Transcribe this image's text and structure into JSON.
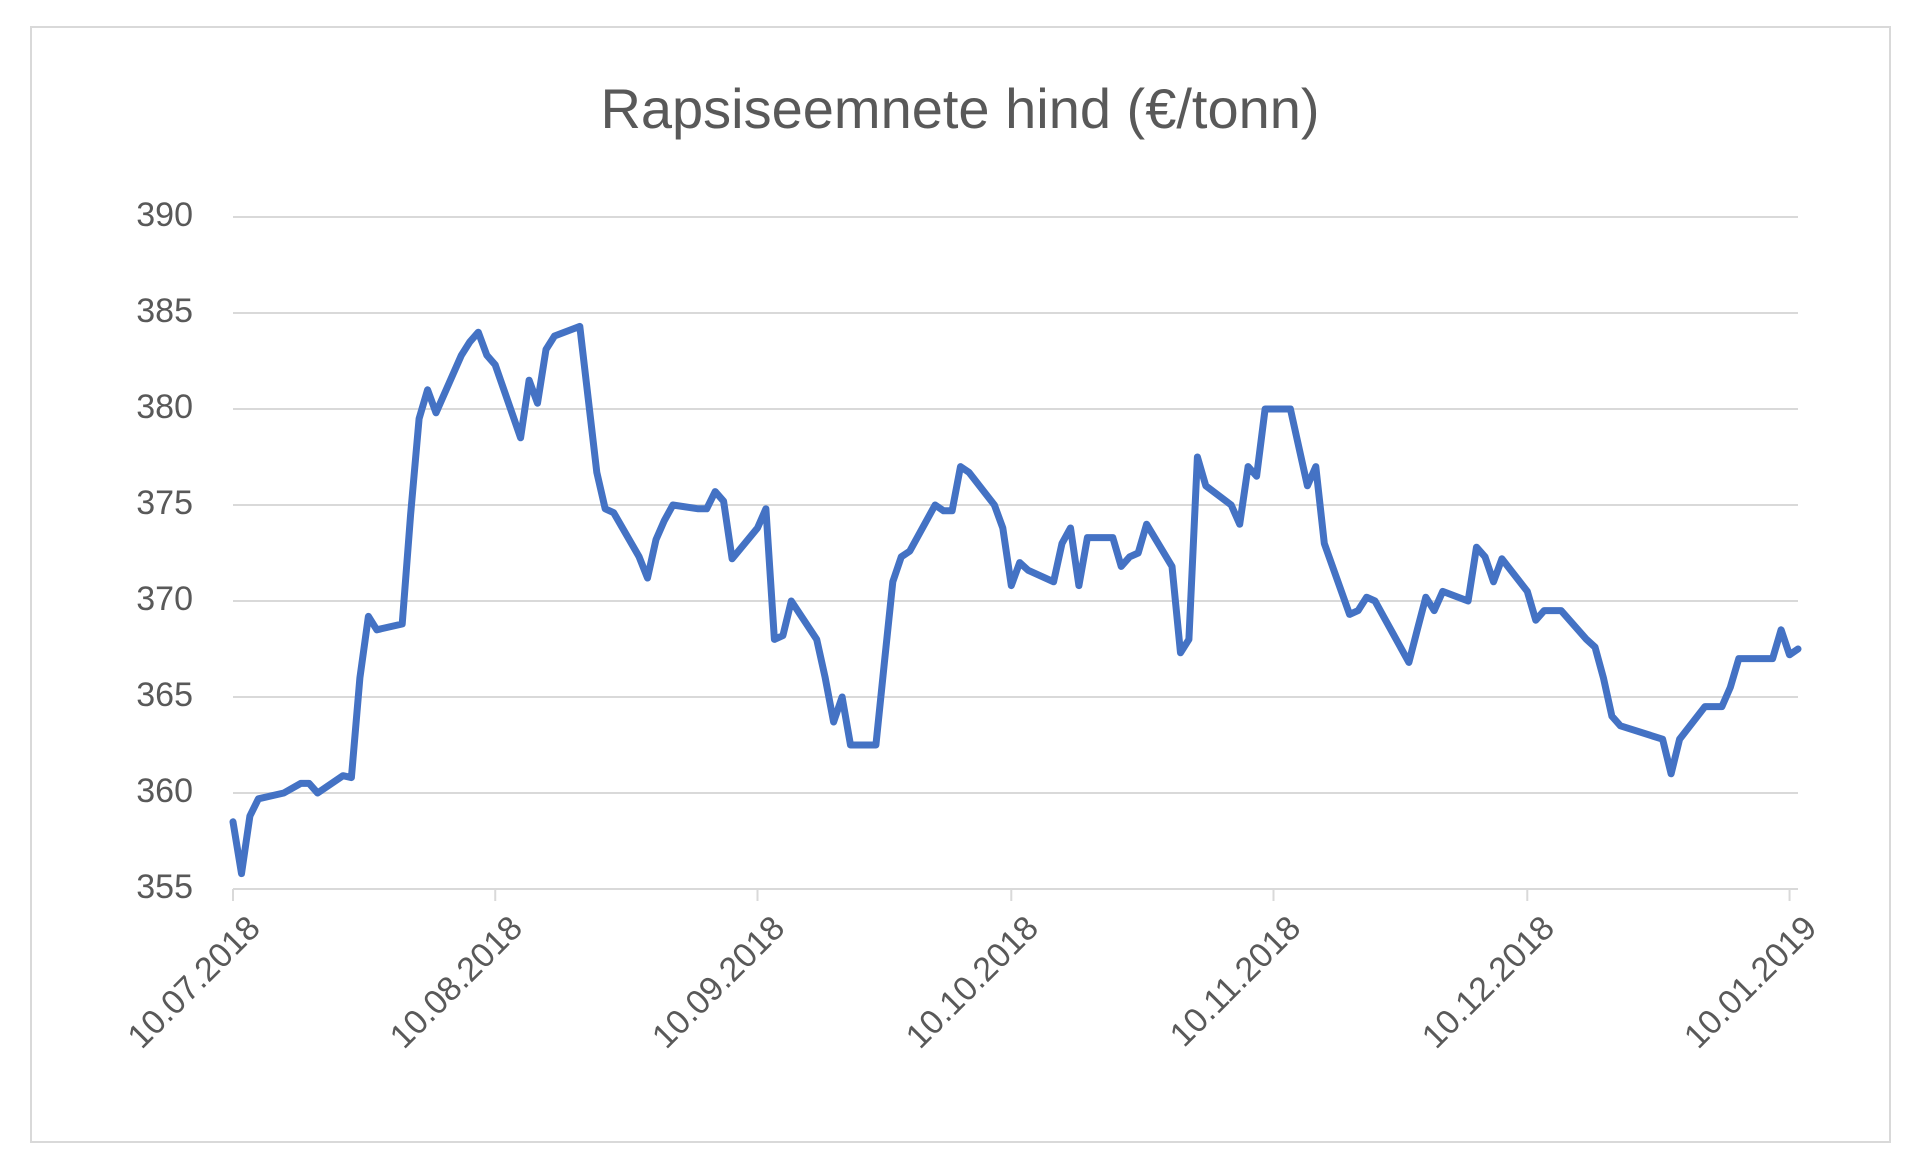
{
  "chart_data": {
    "type": "line",
    "title": "Rapsiseemnete hind (€/tonn)",
    "color": "#4472c4",
    "grid": true,
    "x": [
      "2018-07-10",
      "2018-07-11",
      "2018-07-12",
      "2018-07-13",
      "2018-07-16",
      "2018-07-18",
      "2018-07-19",
      "2018-07-20",
      "2018-07-23",
      "2018-07-24",
      "2018-07-25",
      "2018-07-26",
      "2018-07-27",
      "2018-07-30",
      "2018-07-31",
      "2018-08-01",
      "2018-08-02",
      "2018-08-03",
      "2018-08-06",
      "2018-08-07",
      "2018-08-08",
      "2018-08-09",
      "2018-08-10",
      "2018-08-13",
      "2018-08-14",
      "2018-08-15",
      "2018-08-16",
      "2018-08-17",
      "2018-08-20",
      "2018-08-21",
      "2018-08-22",
      "2018-08-23",
      "2018-08-24",
      "2018-08-27",
      "2018-08-28",
      "2018-08-29",
      "2018-08-30",
      "2018-08-31",
      "2018-09-03",
      "2018-09-04",
      "2018-09-05",
      "2018-09-06",
      "2018-09-07",
      "2018-09-10",
      "2018-09-11",
      "2018-09-12",
      "2018-09-13",
      "2018-09-14",
      "2018-09-17",
      "2018-09-18",
      "2018-09-19",
      "2018-09-20",
      "2018-09-21",
      "2018-09-24",
      "2018-09-25",
      "2018-09-26",
      "2018-09-27",
      "2018-09-28",
      "2018-10-01",
      "2018-10-02",
      "2018-10-03",
      "2018-10-04",
      "2018-10-05",
      "2018-10-08",
      "2018-10-09",
      "2018-10-10",
      "2018-10-11",
      "2018-10-12",
      "2018-10-15",
      "2018-10-16",
      "2018-10-17",
      "2018-10-18",
      "2018-10-19",
      "2018-10-22",
      "2018-10-23",
      "2018-10-24",
      "2018-10-25",
      "2018-10-26",
      "2018-10-29",
      "2018-10-30",
      "2018-10-31",
      "2018-11-01",
      "2018-11-02",
      "2018-11-05",
      "2018-11-06",
      "2018-11-07",
      "2018-11-08",
      "2018-11-09",
      "2018-11-12",
      "2018-11-13",
      "2018-11-14",
      "2018-11-15",
      "2018-11-16",
      "2018-11-19",
      "2018-11-20",
      "2018-11-21",
      "2018-11-22",
      "2018-11-23",
      "2018-11-26",
      "2018-11-27",
      "2018-11-28",
      "2018-11-29",
      "2018-11-30",
      "2018-12-03",
      "2018-12-04",
      "2018-12-05",
      "2018-12-06",
      "2018-12-07",
      "2018-12-10",
      "2018-12-11",
      "2018-12-12",
      "2018-12-13",
      "2018-12-14",
      "2018-12-17",
      "2018-12-18",
      "2018-12-19",
      "2018-12-20",
      "2018-12-21",
      "2018-12-26",
      "2018-12-27",
      "2018-12-28",
      "2018-12-31",
      "2019-01-02",
      "2019-01-03",
      "2019-01-04",
      "2019-01-07",
      "2019-01-08",
      "2019-01-09",
      "2019-01-10",
      "2019-01-11"
    ],
    "values": [
      358.5,
      355.8,
      358.8,
      359.7,
      360.0,
      360.5,
      360.5,
      360.0,
      360.9,
      360.8,
      366,
      369.2,
      368.5,
      368.8,
      374.5,
      379.5,
      381,
      379.8,
      382.8,
      383.5,
      384,
      382.8,
      382.3,
      378.5,
      381.5,
      380.3,
      383.1,
      383.8,
      384.3,
      380.5,
      376.7,
      374.8,
      374.6,
      372.3,
      371.2,
      373.2,
      374.2,
      375,
      374.8,
      374.8,
      375.7,
      375.2,
      372.2,
      373.8,
      374.8,
      368,
      368.2,
      370,
      368,
      366,
      363.7,
      365,
      362.5,
      362.5,
      366.8,
      371,
      372.3,
      372.6,
      375,
      374.7,
      374.7,
      377,
      376.7,
      375,
      373.8,
      370.8,
      372,
      371.6,
      371,
      373,
      373.8,
      370.8,
      373.3,
      373.3,
      371.8,
      372.3,
      372.5,
      374,
      371.8,
      367.3,
      368,
      377.5,
      376,
      375,
      374,
      377,
      376.5,
      380,
      380,
      378,
      376,
      377,
      373,
      369.3,
      369.5,
      370.2,
      370,
      369.2,
      366.8,
      368.5,
      370.2,
      369.5,
      370.5,
      370,
      372.8,
      372.3,
      371,
      372.2,
      370.5,
      369,
      369.5,
      369.5,
      369.5,
      368,
      367.6,
      366,
      364,
      363.5,
      362.8,
      361,
      362.8,
      364.5,
      364.5,
      365.5,
      367,
      367,
      367,
      368.5,
      367.2,
      367.5
    ],
    "xlim": [
      "2018-07-10",
      "2019-01-11"
    ],
    "xticks": [
      {
        "value": "2018-07-10",
        "label": "10.07.2018"
      },
      {
        "value": "2018-08-10",
        "label": "10.08.2018"
      },
      {
        "value": "2018-09-10",
        "label": "10.09.2018"
      },
      {
        "value": "2018-10-10",
        "label": "10.10.2018"
      },
      {
        "value": "2018-11-10",
        "label": "10.11.2018"
      },
      {
        "value": "2018-12-10",
        "label": "10.12.2018"
      },
      {
        "value": "2019-01-10",
        "label": "10.01.2019"
      }
    ],
    "ylim": [
      355,
      390
    ],
    "yticks": [
      355,
      360,
      365,
      370,
      375,
      380,
      385,
      390
    ]
  }
}
